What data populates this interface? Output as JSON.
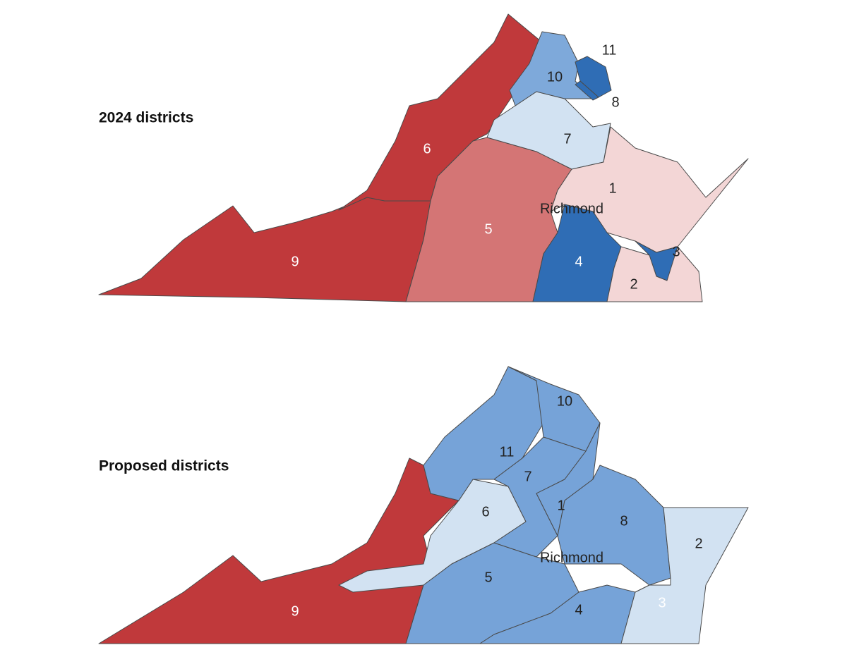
{
  "maps": [
    {
      "title": "2024 districts",
      "city": "Richmond",
      "districts": [
        {
          "label": "9",
          "color": "#c0393b"
        },
        {
          "label": "6",
          "color": "#c0393b"
        },
        {
          "label": "5",
          "color": "#d47575"
        },
        {
          "label": "7",
          "color": "#d2e2f2"
        },
        {
          "label": "10",
          "color": "#7ea9da"
        },
        {
          "label": "11",
          "color": "#2f6db5"
        },
        {
          "label": "8",
          "color": "#2f6db5"
        },
        {
          "label": "1",
          "color": "#f3d6d6"
        },
        {
          "label": "4",
          "color": "#2f6db5"
        },
        {
          "label": "3",
          "color": "#2f6db5"
        },
        {
          "label": "2",
          "color": "#f3d6d6"
        }
      ]
    },
    {
      "title": "Proposed districts",
      "city": "Richmond",
      "districts": [
        {
          "label": "9",
          "color": "#c0393b"
        },
        {
          "label": "6",
          "color": "#d2e2f2"
        },
        {
          "label": "5",
          "color": "#76a3d8"
        },
        {
          "label": "4",
          "color": "#76a3d8"
        },
        {
          "label": "11",
          "color": "#76a3d8"
        },
        {
          "label": "10",
          "color": "#76a3d8"
        },
        {
          "label": "7",
          "color": "#76a3d8"
        },
        {
          "label": "1",
          "color": "#76a3d8"
        },
        {
          "label": "8",
          "color": "#76a3d8"
        },
        {
          "label": "3",
          "color": "#2f6db5"
        },
        {
          "label": "2",
          "color": "#d2e2f2"
        }
      ]
    }
  ]
}
